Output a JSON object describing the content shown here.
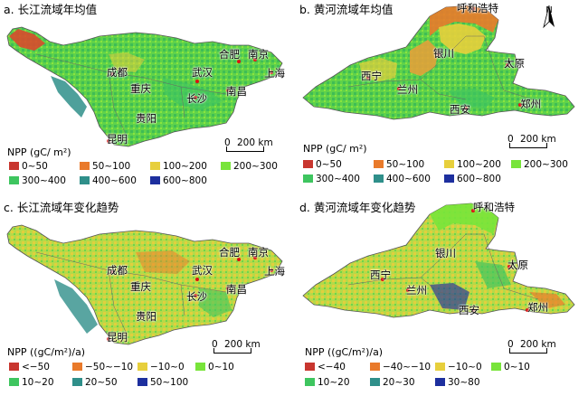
{
  "panels": {
    "a": {
      "title": "a. 长江流域年均值",
      "legend_title": "NPP (gC/ m²)",
      "legend": [
        {
          "label": "0~50",
          "color": "#c8362f"
        },
        {
          "label": "50~100",
          "color": "#e97a2b"
        },
        {
          "label": "100~200",
          "color": "#e7cf3c"
        },
        {
          "label": "200~300",
          "color": "#78e43a"
        },
        {
          "label": "300~400",
          "color": "#3ec55f"
        },
        {
          "label": "400~600",
          "color": "#2f8f8a"
        },
        {
          "label": "600~800",
          "color": "#1d2f9e"
        }
      ],
      "scale": {
        "zero": "0",
        "text": "200 km"
      },
      "cities": [
        "成都",
        "重庆",
        "贵阳",
        "昆明",
        "武汉",
        "长沙",
        "南昌",
        "合肥",
        "南京",
        "上海"
      ]
    },
    "b": {
      "title": "b. 黄河流域年均值",
      "legend_title": "NPP (gC/ m²)",
      "legend": [
        {
          "label": "0~50",
          "color": "#c8362f"
        },
        {
          "label": "50~100",
          "color": "#e97a2b"
        },
        {
          "label": "100~200",
          "color": "#e7cf3c"
        },
        {
          "label": "200~300",
          "color": "#78e43a"
        },
        {
          "label": "300~400",
          "color": "#3ec55f"
        },
        {
          "label": "400~600",
          "color": "#2f8f8a"
        },
        {
          "label": "600~800",
          "color": "#1d2f9e"
        }
      ],
      "scale": {
        "zero": "0",
        "text": "200 km"
      },
      "north": "N",
      "cities": [
        "呼和浩特",
        "银川",
        "太原",
        "西宁",
        "兰州",
        "西安",
        "郑州"
      ]
    },
    "c": {
      "title": "c. 长江流域年变化趋势",
      "legend_title": "NPP ((gC/m²)/a)",
      "legend": [
        {
          "label": "<−50",
          "color": "#c8362f"
        },
        {
          "label": "−50~−10",
          "color": "#e97a2b"
        },
        {
          "label": "−10~0",
          "color": "#e7cf3c"
        },
        {
          "label": "0~10",
          "color": "#78e43a"
        },
        {
          "label": "10~20",
          "color": "#3ec55f"
        },
        {
          "label": "20~50",
          "color": "#2f8f8a"
        },
        {
          "label": "50~100",
          "color": "#1d2f9e"
        }
      ],
      "scale": {
        "zero": "0",
        "text": "200 km"
      },
      "cities": [
        "成都",
        "重庆",
        "贵阳",
        "昆明",
        "武汉",
        "长沙",
        "南昌",
        "合肥",
        "南京",
        "上海"
      ]
    },
    "d": {
      "title": "d. 黄河流域年变化趋势",
      "legend_title": "NPP ((gC/m²)/a)",
      "legend": [
        {
          "label": "<−40",
          "color": "#c8362f"
        },
        {
          "label": "−40~−10",
          "color": "#e97a2b"
        },
        {
          "label": "−10~0",
          "color": "#e7cf3c"
        },
        {
          "label": "0~10",
          "color": "#78e43a"
        },
        {
          "label": "10~20",
          "color": "#3ec55f"
        },
        {
          "label": "20~30",
          "color": "#2f8f8a"
        },
        {
          "label": "30~80",
          "color": "#1d2f9e"
        }
      ],
      "scale": {
        "zero": "0",
        "text": "200 km"
      },
      "cities": [
        "呼和浩特",
        "银川",
        "太原",
        "西宁",
        "兰州",
        "西安",
        "郑州"
      ]
    }
  }
}
